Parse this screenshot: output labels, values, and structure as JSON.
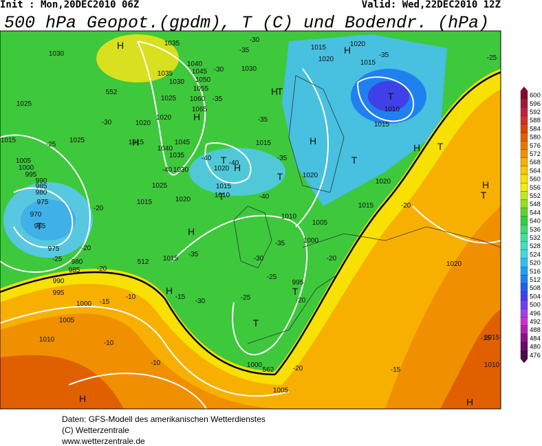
{
  "header": {
    "init": "Init : Mon,20DEC2010 06Z",
    "valid": "Valid: Wed,22DEC2010 12Z",
    "title": "500 hPa Geopot.(gpdm), T (C) und Bodendr. (hPa)"
  },
  "isobar_labels": [
    "1030",
    "1035",
    "1040",
    "1045",
    "1050",
    "1055",
    "1060",
    "1065",
    "1030",
    "1035",
    "1025",
    "1020",
    "1020",
    "1030",
    "1015",
    "1020",
    "1020",
    "1015",
    "1010",
    "1015",
    "1025",
    "1015",
    "1025",
    "1015",
    "1045",
    "1040",
    "1035",
    "1030",
    "1025",
    "1020",
    "1015",
    "1020",
    "1015",
    "1010",
    "1015",
    "1020",
    "1020",
    "1015",
    "1010",
    "1005",
    "1000",
    "1005",
    "1000",
    "995",
    "990",
    "985",
    "980",
    "975",
    "970",
    "965",
    "975",
    "980",
    "985",
    "990",
    "995",
    "1000",
    "1005",
    "1010",
    "1015",
    "995",
    "1000",
    "1005",
    "1020",
    "1015",
    "1010"
  ],
  "temperature_labels": [
    "-30",
    "-35",
    "-30",
    "-35",
    "-30",
    "-25",
    "-35",
    "-35",
    "-40",
    "-40",
    "-40",
    "-40",
    "-35",
    "-35",
    "-30",
    "-25",
    "-20",
    "-20",
    "-20",
    "-20",
    "-25",
    "-20",
    "-15",
    "-10",
    "-15",
    "-30",
    "-25",
    "-20",
    "-10",
    "-10",
    "-15",
    "-20",
    "-15",
    "-35",
    "-25"
  ],
  "geopotential_labels": [
    "552",
    "562",
    "512"
  ],
  "pressure_centers": [
    "H",
    "H",
    "H",
    "H",
    "H",
    "H",
    "H",
    "H",
    "H",
    "H",
    "H",
    "H",
    "H",
    "T",
    "T",
    "T",
    "T",
    "T",
    "T",
    "T",
    "T",
    "T",
    "T",
    "T"
  ],
  "colorbar": {
    "ticks": [
      600,
      596,
      592,
      588,
      584,
      580,
      576,
      572,
      568,
      564,
      560,
      556,
      552,
      548,
      544,
      540,
      536,
      532,
      528,
      524,
      520,
      516,
      512,
      508,
      504,
      500,
      496,
      492,
      488,
      484,
      480,
      476
    ],
    "colors": [
      "#800a30",
      "#a01838",
      "#c02040",
      "#d03030",
      "#d84800",
      "#e06000",
      "#e87800",
      "#f09000",
      "#f8b000",
      "#f8c800",
      "#f8e000",
      "#f0f000",
      "#c0e820",
      "#90e020",
      "#60d030",
      "#30d040",
      "#40d870",
      "#40e0a0",
      "#40e0c0",
      "#40d8e0",
      "#30c0f0",
      "#20a0f0",
      "#2080f0",
      "#2060f0",
      "#4040f0",
      "#7040f0",
      "#a040f0",
      "#d030d0",
      "#b020b0",
      "#8a108a",
      "#6a0a6a",
      "#4b0a4b"
    ]
  },
  "footer": [
    "Daten: GFS-Modell des amerikanischen Wetterdienstes",
    "(C) Wetterzentrale",
    "www.wetterzentrale.de"
  ]
}
